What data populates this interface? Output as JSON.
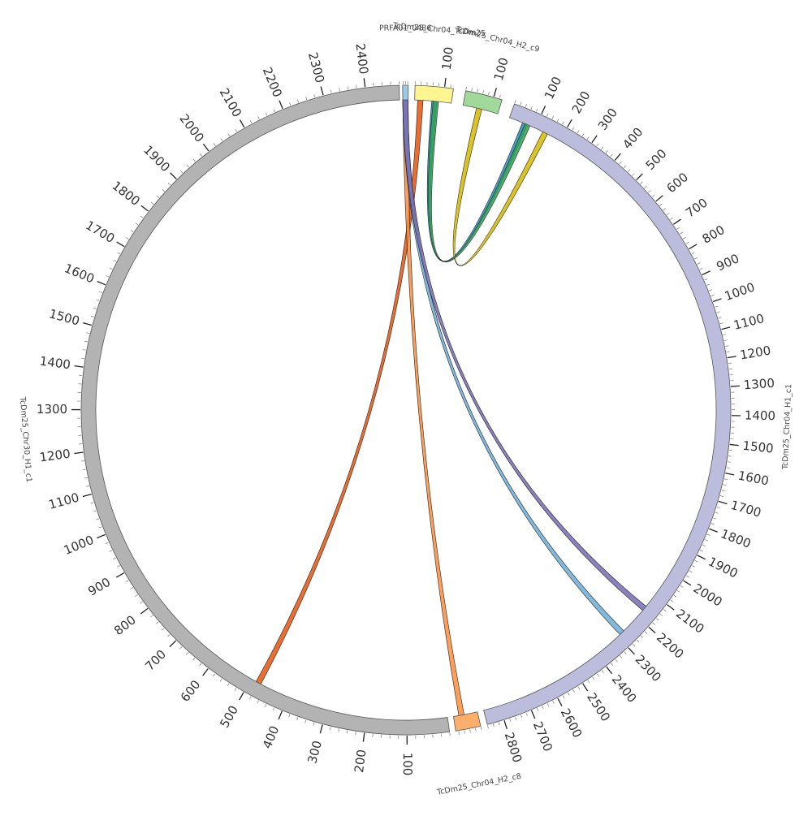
{
  "segments": [
    {
      "id": "prfa",
      "name": "PRFA01_0486",
      "color": "#9ecae1",
      "start_deg": -0.6,
      "end_deg": 0.4,
      "length": 0,
      "ticks": []
    },
    {
      "id": "chr04_sm",
      "name": "TcDm25_Chr04_TcDm25",
      "color": "#fff68f",
      "start_deg": 1.6,
      "end_deg": 8.4,
      "length": 130,
      "ticks": [
        "100"
      ]
    },
    {
      "id": "chr04_h2_c9",
      "name": "TcDm25_Chr04_H2_c9",
      "color": "#a1d99b",
      "start_deg": 10.6,
      "end_deg": 17.2,
      "length": 130,
      "ticks": [
        "100"
      ]
    },
    {
      "id": "chr04_h1",
      "name": "TcDm25_Chr04_H1_c1",
      "color": "#bcbddc",
      "start_deg": 19.5,
      "end_deg": 165.5,
      "length": 2860,
      "ticks": [
        "100",
        "200",
        "300",
        "400",
        "500",
        "600",
        "700",
        "800",
        "900",
        "1000",
        "1100",
        "1200",
        "1300",
        "1400",
        "1500",
        "1600",
        "1700",
        "1800",
        "1900",
        "2000",
        "2100",
        "2200",
        "2300",
        "2400",
        "2500",
        "2600",
        "2700",
        "2800"
      ]
    },
    {
      "id": "chr04_h2_c8",
      "name": "TcDm25_Chr04_H2_c8",
      "color": "#fdae6b",
      "start_deg": 166.7,
      "end_deg": 171.2,
      "length": 90,
      "ticks": []
    },
    {
      "id": "chr30_h1",
      "name": "TcDm25_Chr30_H1_c1",
      "color": "#b3b3b3",
      "start_deg": 172.3,
      "end_deg": 358.8,
      "length": 2480,
      "ticks": [
        "100",
        "200",
        "300",
        "400",
        "500",
        "600",
        "700",
        "800",
        "900",
        "1000",
        "1100",
        "1200",
        "1300",
        "1400",
        "1500",
        "1600",
        "1700",
        "1800",
        "1900",
        "2000",
        "2100",
        "2200",
        "2300",
        "2400"
      ]
    }
  ],
  "links": [
    {
      "color": "#e6550d",
      "from": {
        "seg": "chr04_sm",
        "pos": 20
      },
      "to": {
        "seg": "chr30_h1",
        "pos": 480
      }
    },
    {
      "color": "#fd8d3c",
      "from": {
        "seg": "prfa",
        "pos": 0
      },
      "to": {
        "seg": "chr04_h2_c8",
        "pos": 60
      }
    },
    {
      "color": "#2b8cbe",
      "from": {
        "seg": "chr04_sm",
        "pos": 70
      },
      "to": {
        "seg": "chr04_h1",
        "pos": 60
      }
    },
    {
      "color": "#31a354",
      "from": {
        "seg": "chr04_sm",
        "pos": 75
      },
      "to": {
        "seg": "chr04_h1",
        "pos": 70
      }
    },
    {
      "color": "#d4b900",
      "from": {
        "seg": "chr04_h2_c9",
        "pos": 60
      },
      "to": {
        "seg": "chr04_h1",
        "pos": 140
      }
    },
    {
      "color": "#6baed6",
      "from": {
        "seg": "prfa",
        "pos": 0
      },
      "to": {
        "seg": "chr04_h1",
        "pos": 2280
      }
    },
    {
      "color": "#756bb1",
      "from": {
        "seg": "prfa",
        "pos": 0
      },
      "to": {
        "seg": "chr04_h1",
        "pos": 2160
      }
    }
  ]
}
